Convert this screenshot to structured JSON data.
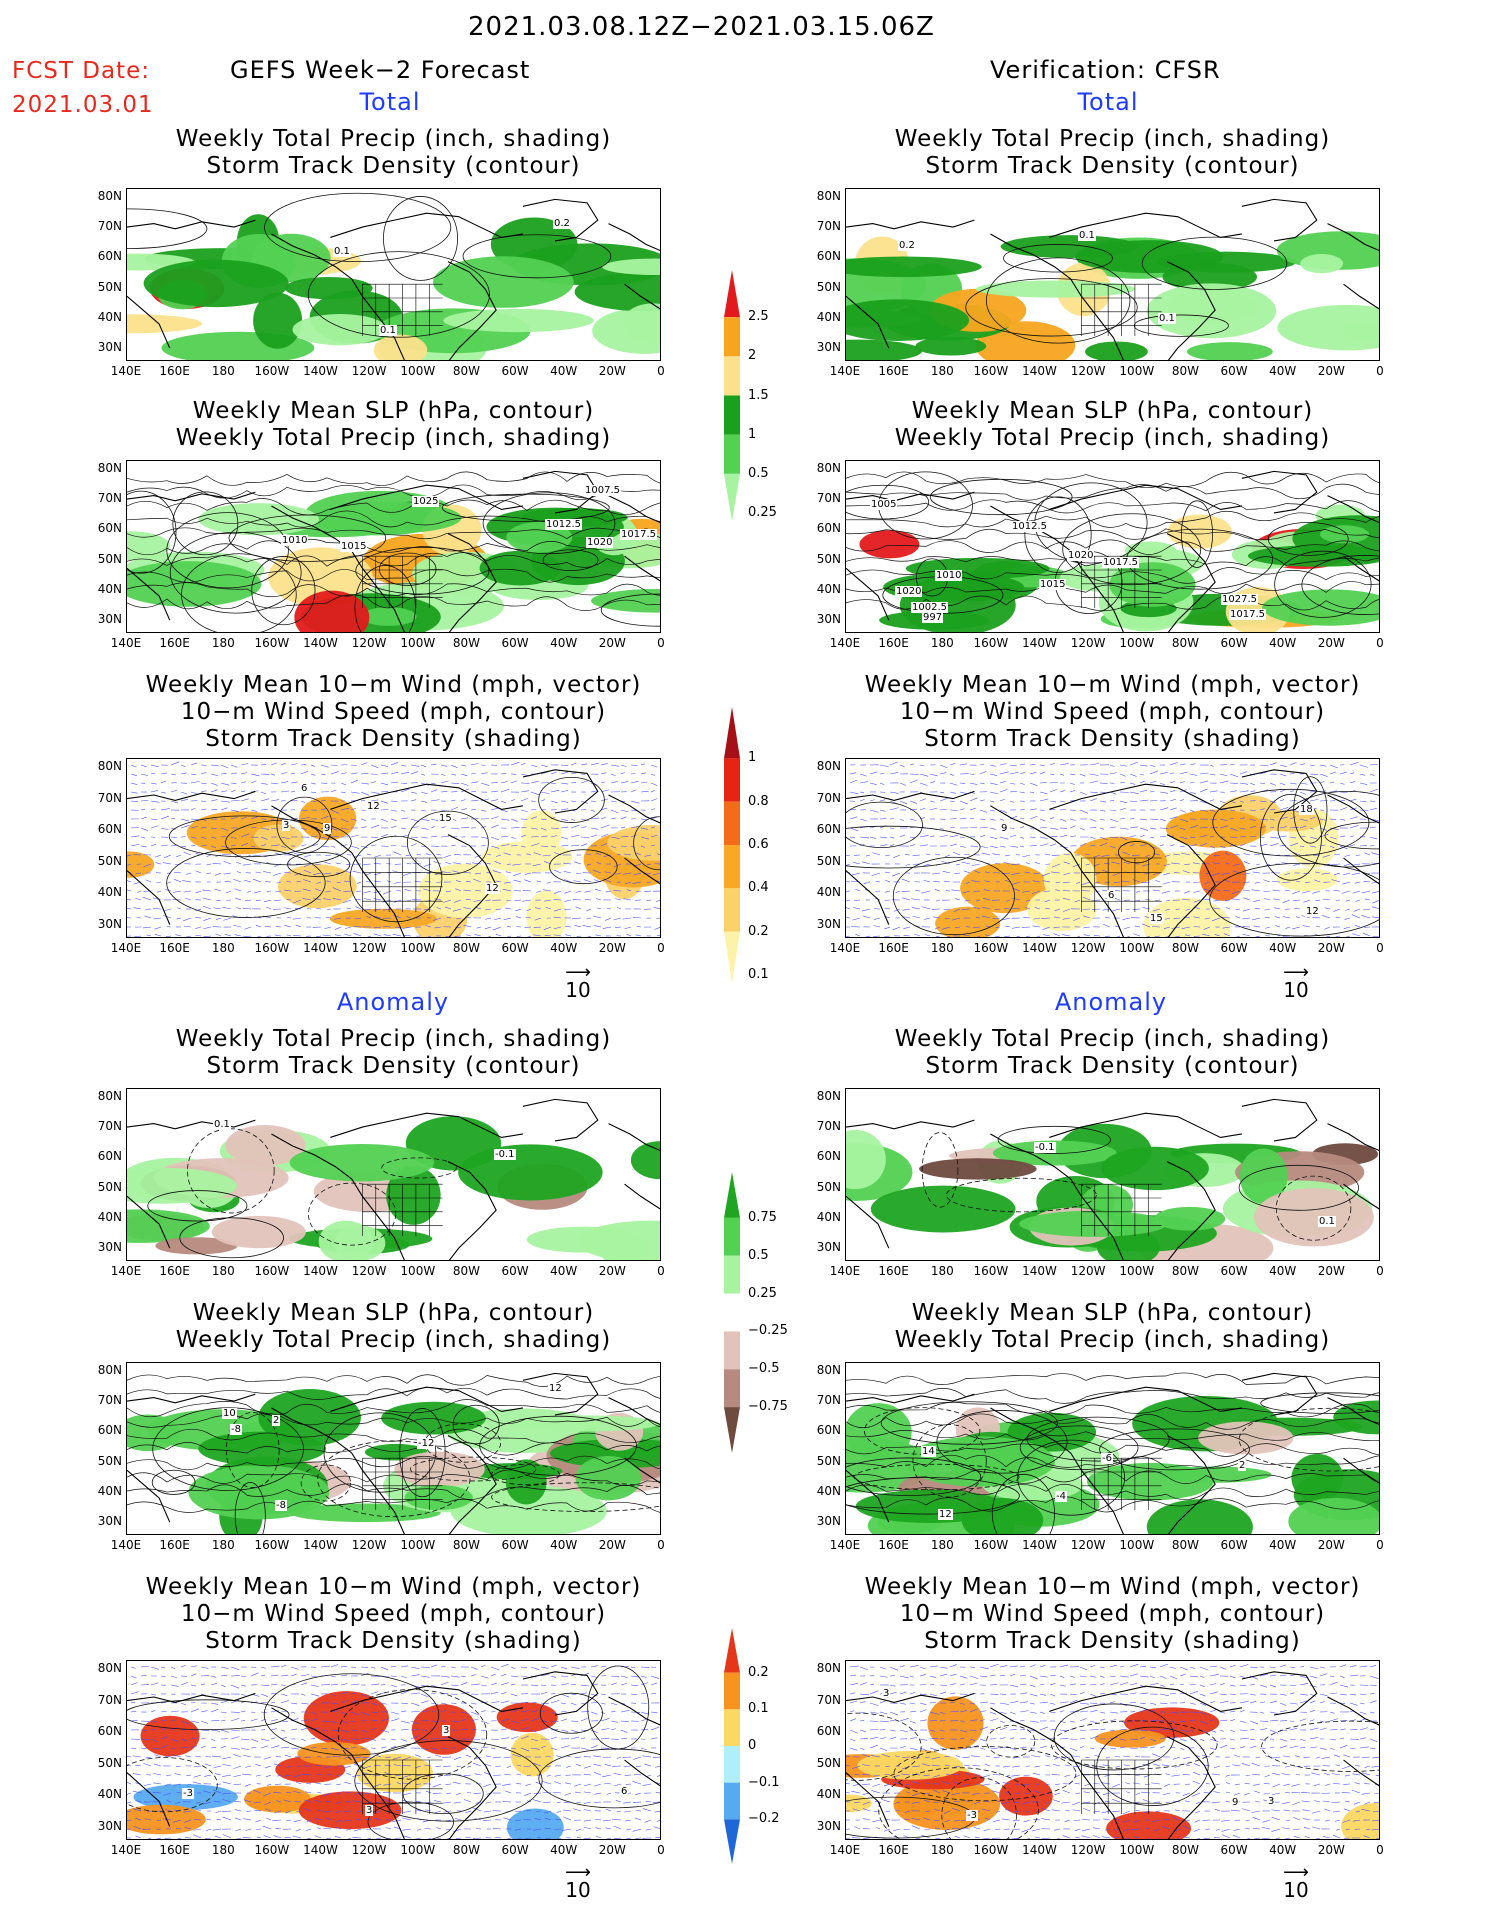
{
  "header": {
    "period": "2021.03.08.12Z−2021.03.15.06Z",
    "fcst_label": "FCST Date:",
    "fcst_date": "2021.03.01",
    "left_title": "GEFS Week−2 Forecast",
    "right_title": "Verification: CFSR"
  },
  "sections": {
    "total": "Total",
    "anomaly": "Anomaly"
  },
  "panel_titles": {
    "precip": [
      "Weekly Total Precip (inch, shading)",
      "Storm Track Density (contour)"
    ],
    "slp": [
      "Weekly Mean SLP (hPa, contour)",
      "Weekly Total Precip (inch, shading)"
    ],
    "wind": [
      "Weekly Mean 10−m Wind (mph, vector)",
      "10−m Wind Speed (mph, contour)",
      "Storm Track Density (shading)"
    ]
  },
  "axes": {
    "lat_labels": [
      "80N",
      "70N",
      "60N",
      "50N",
      "40N",
      "30N"
    ],
    "lon_labels": [
      "140E",
      "160E",
      "180",
      "160W",
      "140W",
      "120W",
      "100W",
      "80W",
      "60W",
      "40W",
      "20W",
      "0"
    ]
  },
  "vector_ref": "10",
  "contour_labels": {
    "gefs_total_precip": [
      "0.1",
      "0.2",
      "0.1"
    ],
    "cfsr_total_precip": [
      "0.1",
      "0.2",
      "0.1"
    ],
    "gefs_total_slp": [
      "1012.5",
      "1010",
      "1015",
      "1017.5",
      "1007.5",
      "1025",
      "1020"
    ],
    "cfsr_total_slp": [
      "1020",
      "1017.5",
      "1015",
      "1012.5",
      "1010",
      "1005",
      "1002.5",
      "997",
      "1020",
      "1017.5",
      "1027.5"
    ],
    "gefs_total_wind": [
      "3",
      "12",
      "6",
      "15",
      "9",
      "12"
    ],
    "cfsr_total_wind": [
      "6",
      "12",
      "9",
      "6",
      "15",
      "18"
    ],
    "gefs_anom_precip": [
      "-0.1",
      "0.1"
    ],
    "cfsr_anom_precip": [
      "0.1",
      "-0.1"
    ],
    "gefs_anom_slp": [
      "-8",
      "-12",
      "10",
      "12",
      "-8",
      "2"
    ],
    "cfsr_anom_slp": [
      "-4",
      "2",
      "14",
      "12",
      "-6"
    ],
    "gefs_anom_wind": [
      "3",
      "6",
      "-3",
      "3"
    ],
    "cfsr_anom_wind": [
      "3",
      "-3",
      "3",
      "9"
    ]
  },
  "colorbars": {
    "total_precip": {
      "labels": [
        "2.5",
        "2",
        "1.5",
        "1",
        "0.5",
        "0.25"
      ],
      "colors": [
        "#e31a1c",
        "#f7a51f",
        "#fbe18c",
        "#1aa01e",
        "#52d152",
        "#a8f3a0"
      ]
    },
    "total_stdens": {
      "labels": [
        "1",
        "0.8",
        "0.6",
        "0.4",
        "0.2",
        "0.1"
      ],
      "colors": [
        "#a50f15",
        "#e52414",
        "#f46b1a",
        "#f7a825",
        "#fbd16a",
        "#fdf3a8"
      ]
    },
    "anom_precip": {
      "labels": [
        "0.75",
        "0.5",
        "0.25",
        "−0.25",
        "−0.5",
        "−0.75"
      ],
      "colors": [
        "#1fa521",
        "#52d152",
        "#a8f3a0",
        "#ffffff",
        "#e2c3b9",
        "#b68a7e",
        "#6e4a3f"
      ]
    },
    "anom_stdens": {
      "labels": [
        "0.2",
        "0.1",
        "0",
        "−0.1",
        "−0.2"
      ],
      "colors": [
        "#e5361a",
        "#f7941f",
        "#fbd862",
        "#aeeffb",
        "#55aaf0",
        "#1e67d8"
      ]
    }
  }
}
